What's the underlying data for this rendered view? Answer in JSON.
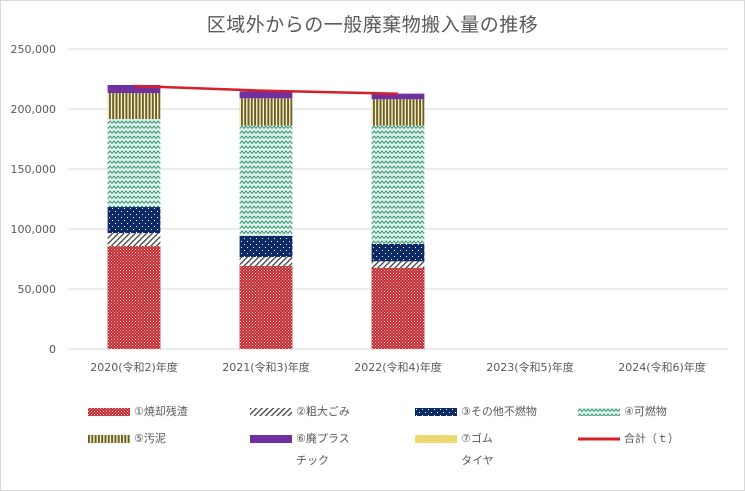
{
  "chart_data": {
    "type": "bar",
    "stacked": true,
    "title": "区域外からの一般廃棄物搬入量の推移",
    "xlabel": "",
    "ylabel": "",
    "ylim": [
      0,
      250000
    ],
    "yticks": [
      0,
      50000,
      100000,
      150000,
      200000,
      250000
    ],
    "ytick_labels": [
      "0",
      "50,000",
      "100,000",
      "150,000",
      "200,000",
      "250,000"
    ],
    "grid": true,
    "legend_position": "bottom",
    "categories": [
      "2020(令和2)年度",
      "2021(令和3)年度",
      "2022(令和4)年度",
      "2023(令和5)年度",
      "2024(令和6)年度"
    ],
    "series": [
      {
        "name": "①焼却残渣",
        "kind": "bar",
        "color": "#c0282d",
        "pattern": "checker",
        "values": [
          85800,
          69200,
          67500,
          null,
          null
        ]
      },
      {
        "name": "②粗大ごみ",
        "kind": "bar",
        "color": "#404040",
        "pattern": "diagonal",
        "values": [
          10800,
          7500,
          5600,
          null,
          null
        ]
      },
      {
        "name": "③その他不燃物",
        "kind": "bar",
        "color": "#0c2a66",
        "pattern": "dots",
        "values": [
          21700,
          17500,
          14400,
          null,
          null
        ]
      },
      {
        "name": "④可燃物",
        "kind": "bar",
        "color": "#2e8b6e",
        "pattern": "zigzag",
        "values": [
          73300,
          91900,
          98600,
          null,
          null
        ]
      },
      {
        "name": "⑤汚泥",
        "kind": "bar",
        "color": "#6b5e2a",
        "pattern": "vstripes",
        "values": [
          21700,
          22800,
          22000,
          null,
          null
        ]
      },
      {
        "name": "⑥廃プラスチック",
        "kind": "bar",
        "color": "#7030a0",
        "pattern": "solid",
        "values": [
          6700,
          5800,
          4700,
          null,
          null
        ]
      },
      {
        "name": "⑦ゴムタイヤ",
        "kind": "bar",
        "color": "#e6d25a",
        "pattern": "checker-yellow",
        "values": [
          0,
          0,
          0,
          null,
          null
        ]
      },
      {
        "name": "合計（ｔ）",
        "kind": "line",
        "color": "#d61f26",
        "values": [
          219200,
          215200,
          212700,
          null,
          null
        ]
      }
    ]
  },
  "legend": [
    {
      "line1": "①焼却残渣",
      "line2": ""
    },
    {
      "line1": "②粗大ごみ",
      "line2": ""
    },
    {
      "line1": "③その他不燃物",
      "line2": ""
    },
    {
      "line1": "④可燃物",
      "line2": ""
    },
    {
      "line1": "⑤汚泥",
      "line2": ""
    },
    {
      "line1": "⑥廃プラス",
      "line2": "チック"
    },
    {
      "line1": "⑦ゴム",
      "line2": "タイヤ"
    },
    {
      "line1": "合計（ｔ）",
      "line2": ""
    }
  ]
}
